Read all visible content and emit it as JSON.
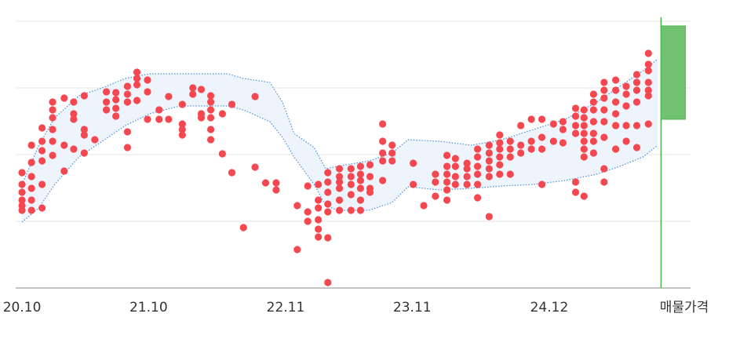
{
  "chart_data": {
    "type": "scatter",
    "xlim": [
      -0.6,
      63.4
    ],
    "ylim": [
      0,
      345
    ],
    "xticks": [
      {
        "value": 0,
        "label": "20.10"
      },
      {
        "value": 12,
        "label": "21.10"
      },
      {
        "value": 25,
        "label": "22.11"
      },
      {
        "value": 37,
        "label": "23.11"
      },
      {
        "value": 50,
        "label": "24.12"
      }
    ],
    "yticks": [
      0,
      85,
      170,
      255,
      340
    ],
    "grid": true,
    "color": "#f5474f",
    "columns": [
      {
        "x": 0,
        "values": [
          147,
          132,
          122,
          112,
          105,
          99
        ]
      },
      {
        "x": 0.9,
        "values": [
          182,
          160,
          142,
          127,
          112,
          99
        ]
      },
      {
        "x": 1.9,
        "values": [
          204,
          187,
          175,
          162,
          132,
          102
        ]
      },
      {
        "x": 2.9,
        "values": [
          237,
          227,
          217,
          202,
          187,
          169
        ]
      },
      {
        "x": 4.0,
        "values": [
          242,
          182,
          149
        ]
      },
      {
        "x": 4.9,
        "values": [
          237,
          222,
          215,
          177
        ]
      },
      {
        "x": 5.9,
        "values": [
          245,
          202,
          195,
          172
        ]
      },
      {
        "x": 6.9,
        "values": [
          189
        ]
      },
      {
        "x": 8.0,
        "values": [
          250,
          237,
          227
        ]
      },
      {
        "x": 8.9,
        "values": [
          249,
          240,
          229,
          219
        ]
      },
      {
        "x": 10.0,
        "values": [
          257,
          247,
          237,
          199,
          179
        ]
      },
      {
        "x": 10.9,
        "values": [
          275,
          267,
          259,
          239
        ]
      },
      {
        "x": 11.9,
        "values": [
          265,
          250,
          215
        ]
      },
      {
        "x": 13.0,
        "values": [
          227,
          215
        ]
      },
      {
        "x": 13.9,
        "values": [
          244,
          215
        ]
      },
      {
        "x": 15.2,
        "values": [
          234,
          209,
          202,
          195
        ]
      },
      {
        "x": 16.2,
        "values": [
          255,
          247
        ]
      },
      {
        "x": 17.0,
        "values": [
          253,
          222,
          217
        ]
      },
      {
        "x": 17.9,
        "values": [
          245,
          237,
          227,
          217,
          202,
          189
        ]
      },
      {
        "x": 19.0,
        "values": [
          222,
          171
        ]
      },
      {
        "x": 19.9,
        "values": [
          234,
          147
        ]
      },
      {
        "x": 21.0,
        "values": [
          77
        ]
      },
      {
        "x": 22.1,
        "values": [
          244,
          154
        ]
      },
      {
        "x": 23.1,
        "values": [
          134
        ]
      },
      {
        "x": 24.1,
        "values": [
          134,
          125
        ]
      },
      {
        "x": 26.1,
        "values": [
          105,
          49
        ]
      },
      {
        "x": 27.1,
        "values": [
          130,
          97,
          85
        ]
      },
      {
        "x": 28.1,
        "values": [
          132,
          112,
          102,
          87,
          75,
          65
        ]
      },
      {
        "x": 29.0,
        "values": [
          147,
          135,
          122,
          107,
          97,
          64,
          7
        ]
      },
      {
        "x": 30.1,
        "values": [
          152,
          142,
          135,
          127,
          112,
          99
        ]
      },
      {
        "x": 31.2,
        "values": [
          152,
          142,
          132,
          119,
          99
        ]
      },
      {
        "x": 32.1,
        "values": [
          155,
          145,
          137,
          127,
          112,
          99
        ]
      },
      {
        "x": 33.0,
        "values": [
          157,
          142,
          127,
          122
        ]
      },
      {
        "x": 34.2,
        "values": [
          209,
          187,
          172,
          162,
          137
        ]
      },
      {
        "x": 35.1,
        "values": [
          182,
          172,
          162
        ]
      },
      {
        "x": 37.1,
        "values": [
          159,
          132
        ]
      },
      {
        "x": 38.1,
        "values": [
          105
        ]
      },
      {
        "x": 39.2,
        "values": [
          145,
          135,
          117
        ]
      },
      {
        "x": 40.3,
        "values": [
          169,
          155,
          145,
          135,
          125,
          112
        ]
      },
      {
        "x": 41.1,
        "values": [
          165,
          155,
          142,
          132
        ]
      },
      {
        "x": 42.2,
        "values": [
          159,
          152,
          142,
          132
        ]
      },
      {
        "x": 43.2,
        "values": [
          177,
          167,
          155,
          145,
          132,
          115
        ]
      },
      {
        "x": 44.3,
        "values": [
          182,
          172,
          162,
          152,
          142,
          91
        ]
      },
      {
        "x": 45.3,
        "values": [
          195,
          185,
          177,
          167,
          157,
          145
        ]
      },
      {
        "x": 46.3,
        "values": [
          187,
          177,
          167,
          145
        ]
      },
      {
        "x": 47.3,
        "values": [
          207,
          182,
          172
        ]
      },
      {
        "x": 48.3,
        "values": [
          215,
          187,
          177
        ]
      },
      {
        "x": 49.3,
        "values": [
          215,
          192,
          177,
          132
        ]
      },
      {
        "x": 50.4,
        "values": [
          209,
          187
        ]
      },
      {
        "x": 51.3,
        "values": [
          212,
          202,
          185
        ]
      },
      {
        "x": 52.5,
        "values": [
          229,
          219,
          207,
          197,
          135,
          122
        ]
      },
      {
        "x": 53.3,
        "values": [
          227,
          217,
          207,
          197,
          187,
          177,
          167,
          117
        ]
      },
      {
        "x": 54.2,
        "values": [
          247,
          237,
          227,
          212,
          197,
          187,
          172
        ]
      },
      {
        "x": 55.2,
        "values": [
          262,
          252,
          242,
          227,
          212,
          192,
          152,
          135
        ]
      },
      {
        "x": 56.3,
        "values": [
          265,
          252,
          237,
          222,
          207,
          177
        ]
      },
      {
        "x": 57.3,
        "values": [
          257,
          247,
          232,
          207,
          187
        ]
      },
      {
        "x": 58.3,
        "values": [
          272,
          262,
          252,
          237,
          207,
          179
        ]
      },
      {
        "x": 59.4,
        "values": [
          299,
          285,
          277,
          262,
          252,
          245,
          209
        ]
      }
    ],
    "band": {
      "color": "#4a8fdc",
      "fill": "#eef4fb",
      "x": [
        0,
        1.6,
        3.1,
        5.4,
        7.6,
        9.8,
        12.1,
        15,
        19.5,
        21,
        23.5,
        24.7,
        25.8,
        27.7,
        28.8,
        29.9,
        32.9,
        35.1,
        36.6,
        39.6,
        42.6,
        45.5,
        48.5,
        51.5,
        54.5,
        56.7,
        58.9,
        60.3
      ],
      "upper": [
        132,
        182,
        217,
        245,
        255,
        267,
        273,
        273,
        273,
        267,
        262,
        237,
        197,
        179,
        152,
        155,
        162,
        172,
        189,
        187,
        182,
        189,
        202,
        215,
        237,
        257,
        277,
        292
      ],
      "lower": [
        84,
        102,
        132,
        167,
        187,
        207,
        222,
        232,
        232,
        227,
        212,
        192,
        167,
        132,
        105,
        99,
        99,
        109,
        129,
        125,
        127,
        130,
        132,
        137,
        145,
        155,
        167,
        182
      ]
    },
    "listing": {
      "label": "매물가격",
      "x": 60.6,
      "low": 215,
      "high": 334,
      "color": "#4cb54c",
      "fill": "#70c270"
    }
  }
}
